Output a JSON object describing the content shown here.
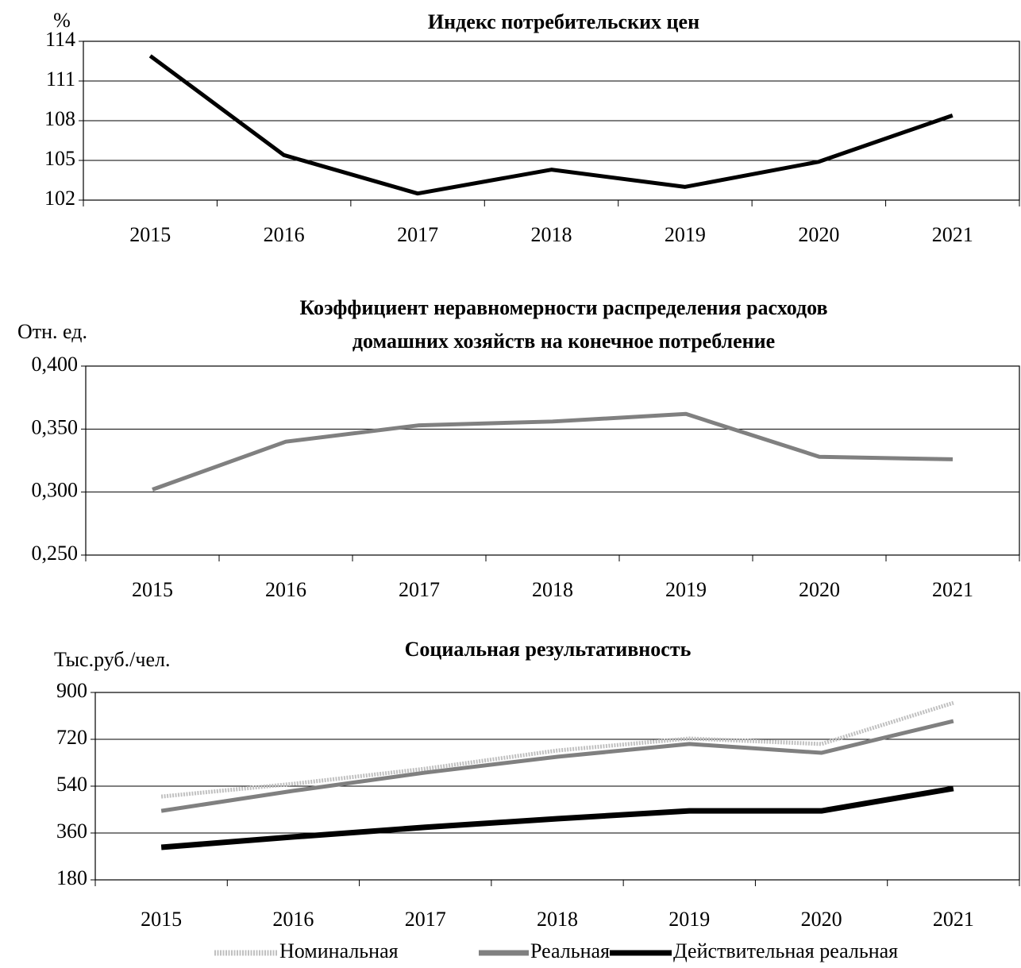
{
  "chart_data": [
    {
      "type": "line",
      "title": "Индекс потребительских цен",
      "y_label": "%",
      "categories": [
        "2015",
        "2016",
        "2017",
        "2018",
        "2019",
        "2020",
        "2021"
      ],
      "series": [
        {
          "name": null,
          "color": "#000000",
          "values": [
            112.9,
            105.4,
            102.5,
            104.3,
            103.0,
            104.9,
            108.4
          ]
        }
      ],
      "ylim": [
        102,
        114
      ],
      "yticks": [
        102,
        105,
        108,
        111,
        114
      ],
      "grid": true
    },
    {
      "type": "line",
      "title": [
        "Коэффициент неравномерности распределения расходов",
        "домашних хозяйств на конечное потребление"
      ],
      "y_label": "Отн. ед.",
      "categories": [
        "2015",
        "2016",
        "2017",
        "2018",
        "2019",
        "2020",
        "2021"
      ],
      "series": [
        {
          "name": null,
          "color": "#808080",
          "values": [
            0.302,
            0.34,
            0.353,
            0.356,
            0.362,
            0.328,
            0.326
          ]
        }
      ],
      "ylim": [
        0.25,
        0.4
      ],
      "yticks": [
        {
          "value": 0.25,
          "label": "0,250"
        },
        {
          "value": 0.3,
          "label": "0,300"
        },
        {
          "value": 0.35,
          "label": "0,350"
        },
        {
          "value": 0.4,
          "label": "0,400"
        }
      ],
      "grid": true
    },
    {
      "type": "line",
      "title": "Социальная результативность",
      "y_label": "Тыс.руб./чел.",
      "categories": [
        "2015",
        "2016",
        "2017",
        "2018",
        "2019",
        "2020",
        "2021"
      ],
      "series": [
        {
          "name": "Номинальная",
          "color": "#c0c0c0",
          "values": [
            500,
            549,
            607,
            677,
            723,
            702,
            860
          ]
        },
        {
          "name": "Реальная",
          "color": "#808080",
          "values": [
            445,
            522,
            592,
            653,
            702,
            668,
            790
          ]
        },
        {
          "name": "Действительная реальная",
          "color": "#000000",
          "values": [
            305,
            345,
            382,
            415,
            445,
            445,
            531
          ]
        }
      ],
      "ylim": [
        180,
        900
      ],
      "yticks": [
        180,
        360,
        540,
        720,
        900
      ],
      "grid": true,
      "legend": "bottom"
    }
  ]
}
